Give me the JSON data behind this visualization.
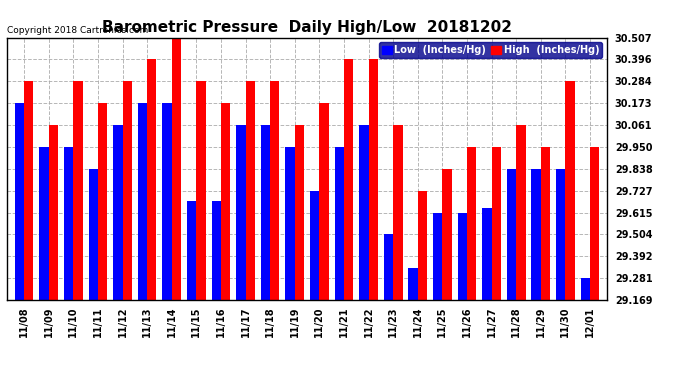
{
  "title": "Barometric Pressure  Daily High/Low  20181202",
  "copyright": "Copyright 2018 Cartronics.com",
  "legend_low": "Low  (Inches/Hg)",
  "legend_high": "High  (Inches/Hg)",
  "dates": [
    "11/08",
    "11/09",
    "11/10",
    "11/11",
    "11/12",
    "11/13",
    "11/14",
    "11/15",
    "11/16",
    "11/17",
    "11/18",
    "11/19",
    "11/20",
    "11/21",
    "11/22",
    "11/23",
    "11/24",
    "11/25",
    "11/26",
    "11/27",
    "11/28",
    "11/29",
    "11/30",
    "12/01"
  ],
  "low": [
    30.173,
    29.95,
    29.95,
    29.838,
    30.061,
    30.173,
    30.173,
    29.672,
    29.672,
    30.061,
    30.061,
    29.95,
    29.727,
    29.95,
    30.061,
    29.504,
    29.33,
    29.615,
    29.615,
    29.638,
    29.838,
    29.838,
    29.838,
    29.281
  ],
  "high": [
    30.284,
    30.061,
    30.284,
    30.173,
    30.284,
    30.396,
    30.507,
    30.284,
    30.173,
    30.284,
    30.284,
    30.061,
    30.173,
    30.396,
    30.396,
    30.061,
    29.727,
    29.838,
    29.95,
    29.95,
    30.061,
    29.95,
    30.284,
    29.95
  ],
  "low_color": "#0000ff",
  "high_color": "#ff0000",
  "ymin": 29.169,
  "ymax": 30.507,
  "yticks": [
    29.169,
    29.281,
    29.392,
    29.504,
    29.615,
    29.727,
    29.838,
    29.95,
    30.061,
    30.173,
    30.284,
    30.396,
    30.507
  ],
  "bg_color": "#ffffff",
  "grid_color": "#aaaaaa",
  "title_fontsize": 11,
  "tick_fontsize": 7,
  "bar_width": 0.38
}
